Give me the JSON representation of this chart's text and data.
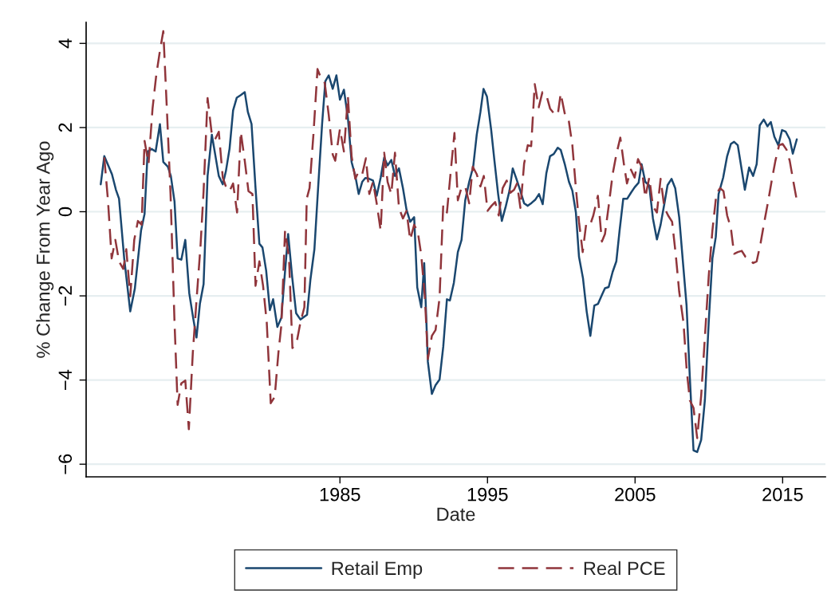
{
  "chart_data": {
    "type": "line",
    "xlabel": "Date",
    "ylabel": "% Change From Year Ago",
    "xlim": [
      1967.8,
      2017.9
    ],
    "xticks": [
      1985,
      1995,
      2005,
      2015
    ],
    "ylim": [
      -6.3,
      4.5
    ],
    "yticks": [
      {
        "value": -6,
        "label": "−6"
      },
      {
        "value": -4,
        "label": "−4"
      },
      {
        "value": -2,
        "label": "−2"
      },
      0,
      2,
      4
    ],
    "grid": "y",
    "legend": "bottom",
    "marker": "none",
    "series": [
      {
        "name": "Retail Emp",
        "color": "#1a476f",
        "line_style": "solid",
        "x": [
          1968.79,
          1969.03,
          1969.55,
          1969.82,
          1970.03,
          1970.38,
          1970.79,
          1971.1,
          1971.52,
          1971.76,
          1971.97,
          1972.24,
          1972.51,
          1972.8,
          1973.03,
          1973.34,
          1973.54,
          1973.79,
          1974.0,
          1974.25,
          1974.52,
          1974.79,
          1975.07,
          1975.28,
          1975.51,
          1975.76,
          1976.03,
          1976.32,
          1976.79,
          1977.06,
          1977.27,
          1977.52,
          1977.76,
          1978.01,
          1978.28,
          1978.55,
          1978.76,
          1979.01,
          1979.28,
          1979.54,
          1979.75,
          1980.0,
          1980.25,
          1980.47,
          1980.76,
          1981.03,
          1981.2,
          1981.49,
          1981.76,
          1982.03,
          1982.32,
          1982.77,
          1983.0,
          1983.27,
          1983.52,
          1983.79,
          1984.01,
          1984.24,
          1984.51,
          1984.76,
          1985.0,
          1985.27,
          1985.54,
          1985.79,
          1986.04,
          1986.27,
          1986.51,
          1986.72,
          1986.93,
          1987.24,
          1987.49,
          1987.76,
          1988.0,
          1988.23,
          1988.48,
          1988.73,
          1989.0,
          1989.27,
          1989.51,
          1989.76,
          1990.03,
          1990.24,
          1990.51,
          1990.71,
          1990.96,
          1991.23,
          1991.48,
          1991.75,
          1992.0,
          1992.25,
          1992.45,
          1992.72,
          1992.99,
          1993.24,
          1993.49,
          1993.76,
          1994.03,
          1994.27,
          1994.52,
          1994.73,
          1994.96,
          1995.25,
          1995.47,
          1995.72,
          1995.97,
          1996.24,
          1996.49,
          1996.71,
          1996.96,
          1997.23,
          1997.48,
          1997.73,
          1997.99,
          1998.25,
          1998.49,
          1998.74,
          1998.99,
          1999.24,
          1999.49,
          1999.76,
          1999.96,
          2000.23,
          2000.52,
          2000.75,
          2000.99,
          2001.2,
          2001.47,
          2001.72,
          2001.97,
          2002.24,
          2002.49,
          2002.75,
          2002.96,
          2003.21,
          2003.48,
          2003.73,
          2003.95,
          2004.2,
          2004.47,
          2004.72,
          2004.97,
          2005.24,
          2005.44,
          2005.69,
          2005.96,
          2006.21,
          2006.48,
          2006.73,
          2006.99,
          2007.2,
          2007.47,
          2007.72,
          2007.99,
          2008.24,
          2008.49,
          2008.71,
          2008.96,
          2009.21,
          2009.48,
          2009.73,
          2009.99,
          2010.24,
          2010.47,
          2010.66,
          2010.97,
          2011.24,
          2011.49,
          2011.71,
          2011.96,
          2012.23,
          2012.44,
          2012.73,
          2013.0,
          2013.24,
          2013.45,
          2013.72,
          2013.97,
          2014.2,
          2014.44,
          2014.71,
          2014.96,
          2015.21,
          2015.48,
          2015.69,
          2015.96
        ],
        "values": [
          0.65,
          1.32,
          0.89,
          0.52,
          0.31,
          -1.11,
          -2.37,
          -1.83,
          -0.45,
          -0.05,
          1.43,
          1.49,
          1.43,
          2.08,
          1.18,
          1.07,
          0.85,
          0.24,
          -1.11,
          -1.14,
          -0.67,
          -1.94,
          -2.56,
          -2.99,
          -2.19,
          -1.72,
          0.85,
          1.83,
          0.85,
          0.65,
          0.96,
          1.5,
          2.41,
          2.71,
          2.77,
          2.84,
          2.37,
          2.08,
          0.56,
          -0.76,
          -0.85,
          -1.4,
          -2.34,
          -2.08,
          -2.74,
          -2.52,
          -1.76,
          -0.53,
          -1.54,
          -2.41,
          -2.56,
          -2.45,
          -1.61,
          -0.89,
          0.56,
          2.08,
          3.1,
          3.24,
          2.92,
          3.24,
          2.66,
          2.9,
          2.23,
          1.18,
          0.85,
          0.42,
          0.71,
          0.8,
          0.79,
          0.74,
          0.38,
          0.81,
          1.29,
          1.1,
          1.23,
          0.85,
          1.03,
          0.56,
          0.05,
          -0.24,
          -0.13,
          -1.8,
          -2.27,
          -1.22,
          -3.57,
          -4.33,
          -4.12,
          -3.99,
          -3.21,
          -2.08,
          -2.11,
          -1.69,
          -0.96,
          -0.67,
          0.27,
          0.71,
          1.07,
          1.83,
          2.37,
          2.92,
          2.74,
          1.94,
          1.21,
          0.42,
          -0.22,
          0.13,
          0.5,
          1.03,
          0.78,
          0.49,
          0.2,
          0.14,
          0.21,
          0.29,
          0.42,
          0.18,
          0.92,
          1.32,
          1.37,
          1.52,
          1.47,
          1.14,
          0.71,
          0.5,
          -0.02,
          -1.07,
          -1.58,
          -2.37,
          -2.95,
          -2.23,
          -2.19,
          -1.98,
          -1.82,
          -1.79,
          -1.43,
          -1.18,
          -0.45,
          0.31,
          0.31,
          0.45,
          0.58,
          0.69,
          1.13,
          0.71,
          0.62,
          -0.16,
          -0.66,
          -0.31,
          0.2,
          0.63,
          0.78,
          0.56,
          -0.13,
          -1.18,
          -2.23,
          -3.93,
          -5.67,
          -5.71,
          -5.42,
          -4.48,
          -2.63,
          -1.11,
          -0.6,
          0.42,
          0.81,
          1.32,
          1.61,
          1.66,
          1.58,
          0.99,
          0.52,
          1.05,
          0.85,
          1.13,
          2.05,
          2.19,
          2.03,
          2.13,
          1.78,
          1.58,
          1.94,
          1.9,
          1.72,
          1.38,
          1.72
        ]
      },
      {
        "name": "Real PCE",
        "color": "#90353b",
        "line_style": "dashed",
        "x": [
          1969.03,
          1969.28,
          1969.53,
          1969.78,
          1970.03,
          1970.32,
          1970.52,
          1970.79,
          1971.06,
          1971.31,
          1971.56,
          1971.76,
          1972.03,
          1972.3,
          1972.55,
          1972.8,
          1973.03,
          1973.27,
          1973.52,
          1973.79,
          1974.0,
          1974.25,
          1974.52,
          1974.76,
          1975.03,
          1975.3,
          1975.55,
          1975.76,
          1976.03,
          1976.32,
          1976.54,
          1976.79,
          1977.06,
          1977.31,
          1977.52,
          1977.76,
          1978.03,
          1978.28,
          1978.55,
          1978.8,
          1979.07,
          1979.28,
          1979.54,
          1979.79,
          1980.04,
          1980.31,
          1980.58,
          1980.83,
          1981.03,
          1981.28,
          1981.55,
          1981.78,
          1982.07,
          1982.32,
          1982.59,
          1982.75,
          1982.94,
          1983.21,
          1983.48,
          1983.72,
          1983.97,
          1984.24,
          1984.51,
          1984.68,
          1985.0,
          1985.27,
          1985.54,
          1985.79,
          1986.04,
          1986.27,
          1986.51,
          1986.76,
          1986.99,
          1987.24,
          1987.49,
          1987.76,
          1988.0,
          1988.23,
          1988.48,
          1988.73,
          1989.0,
          1989.27,
          1989.51,
          1989.76,
          1990.03,
          1990.28,
          1990.51,
          1990.76,
          1990.96,
          1991.23,
          1991.48,
          1991.75,
          1992.0,
          1992.25,
          1992.52,
          1992.76,
          1992.99,
          1993.24,
          1993.49,
          1993.76,
          1994.0,
          1994.27,
          1994.52,
          1994.75,
          1995.0,
          1995.27,
          1995.52,
          1995.76,
          1996.03,
          1996.3,
          1996.55,
          1996.8,
          1997.0,
          1997.23,
          1997.48,
          1997.73,
          1997.96,
          1998.2,
          1998.47,
          1998.72,
          1998.99,
          1999.24,
          1999.49,
          1999.76,
          1999.96,
          2000.23,
          2000.48,
          2000.75,
          2000.99,
          2001.2,
          2001.45,
          2001.68,
          2001.93,
          2002.17,
          2002.48,
          2002.75,
          2002.96,
          2003.21,
          2003.48,
          2003.73,
          2004.0,
          2004.24,
          2004.45,
          2004.72,
          2004.97,
          2005.2,
          2005.44,
          2005.69,
          2005.96,
          2006.21,
          2006.48,
          2006.73,
          2006.99,
          2007.24,
          2007.51,
          2007.76,
          2007.99,
          2008.28,
          2008.49,
          2008.71,
          2008.96,
          2009.21,
          2009.48,
          2009.73,
          2009.99,
          2010.24,
          2010.51,
          2010.76,
          2010.99,
          2011.24,
          2011.49,
          2011.71,
          2011.96,
          2012.23,
          2012.48,
          2012.73,
          2013.0,
          2013.24,
          2013.51,
          2013.76,
          2014.03,
          2014.28,
          2014.51,
          2014.76,
          2015.0,
          2015.27,
          2015.48,
          2015.73,
          2015.96
        ],
        "values": [
          1.29,
          0.27,
          -1.11,
          -0.67,
          -1.18,
          -1.36,
          -0.89,
          -2.01,
          -0.67,
          -0.22,
          -0.31,
          1.68,
          1.14,
          2.45,
          3.24,
          3.82,
          4.29,
          2.45,
          0.42,
          -2.63,
          -4.59,
          -4.08,
          -4.01,
          -5.17,
          -3.35,
          -2.01,
          -0.82,
          0.49,
          2.7,
          1.83,
          1.72,
          1.9,
          0.81,
          0.56,
          0.49,
          0.67,
          -0.02,
          1.9,
          1.21,
          0.49,
          0.42,
          -1.76,
          -1.18,
          -1.76,
          -2.63,
          -4.55,
          -4.4,
          -3.35,
          -2.7,
          -0.45,
          -1.11,
          -3.24,
          -3.1,
          -2.63,
          -2.27,
          0.31,
          0.56,
          1.87,
          3.39,
          3.17,
          3.06,
          2.3,
          1.36,
          1.21,
          1.97,
          1.43,
          2.74,
          1.32,
          0.78,
          0.96,
          0.89,
          1.27,
          0.42,
          0.71,
          0.2,
          -0.45,
          1.4,
          0.71,
          0.42,
          1.4,
          0.09,
          -0.16,
          0.02,
          -0.67,
          -0.31,
          -0.49,
          -1.03,
          -2.05,
          -3.5,
          -2.95,
          -2.81,
          -2.05,
          0.16,
          -0.02,
          1.0,
          1.87,
          0.27,
          0.58,
          0.6,
          0.2,
          1.07,
          0.89,
          0.6,
          0.85,
          0.02,
          0.14,
          0.23,
          -0.09,
          0.56,
          0.74,
          0.45,
          0.52,
          0.67,
          0.09,
          1.14,
          1.58,
          1.56,
          3.03,
          2.48,
          2.84,
          2.77,
          2.45,
          2.34,
          2.3,
          2.81,
          2.34,
          2.23,
          1.58,
          0.56,
          -0.24,
          -0.96,
          -0.31,
          -0.34,
          -0.09,
          0.38,
          -0.71,
          -0.53,
          0.13,
          0.89,
          1.36,
          1.76,
          1.14,
          0.67,
          1.0,
          0.81,
          1.25,
          1.07,
          0.34,
          0.81,
          0.13,
          -0.02,
          0.78,
          0.09,
          -0.09,
          -0.24,
          -1.03,
          -1.9,
          -2.63,
          -3.72,
          -4.48,
          -4.66,
          -5.38,
          -4.37,
          -2.99,
          -1.54,
          -0.45,
          0.42,
          0.56,
          0.49,
          -0.09,
          -0.38,
          -1.0,
          -0.96,
          -0.93,
          -1.07,
          -1.11,
          -1.22,
          -1.18,
          -0.74,
          -0.24,
          0.27,
          0.78,
          1.21,
          1.58,
          1.61,
          1.47,
          1.21,
          0.71,
          0.27
        ]
      }
    ]
  }
}
